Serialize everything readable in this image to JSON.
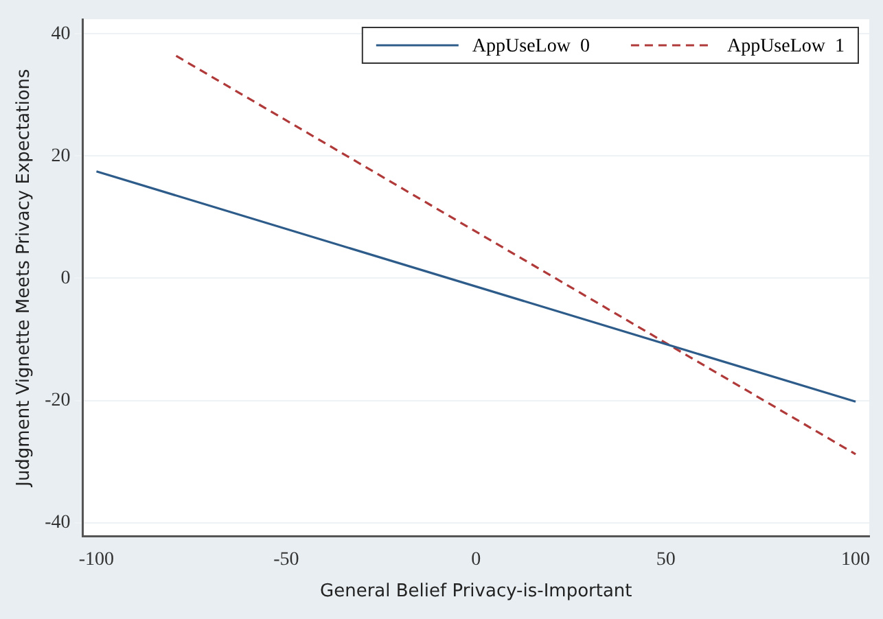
{
  "chart_data": {
    "type": "line",
    "xlabel": "General Belief Privacy-is-Important",
    "ylabel": "Judgment Vignette Meets Privacy Expectations",
    "xlim": [
      -103.6,
      103.6
    ],
    "xticks": [
      -100,
      -50,
      0,
      50,
      100
    ],
    "ylim": [
      -42.2,
      42.4
    ],
    "yticks": [
      -40,
      -20,
      0,
      20,
      40
    ],
    "grid": "y",
    "legend": "top right",
    "series": [
      {
        "name": "AppUseLow  0",
        "color": "#2e5c8a",
        "line_style": "solid",
        "x": [
          -100,
          100
        ],
        "values": [
          17.5,
          -20.2
        ]
      },
      {
        "name": "AppUseLow  1",
        "color": "#b03a3a",
        "line_style": "dashed",
        "x": [
          -79,
          100
        ],
        "values": [
          36.4,
          -28.8
        ]
      }
    ]
  }
}
